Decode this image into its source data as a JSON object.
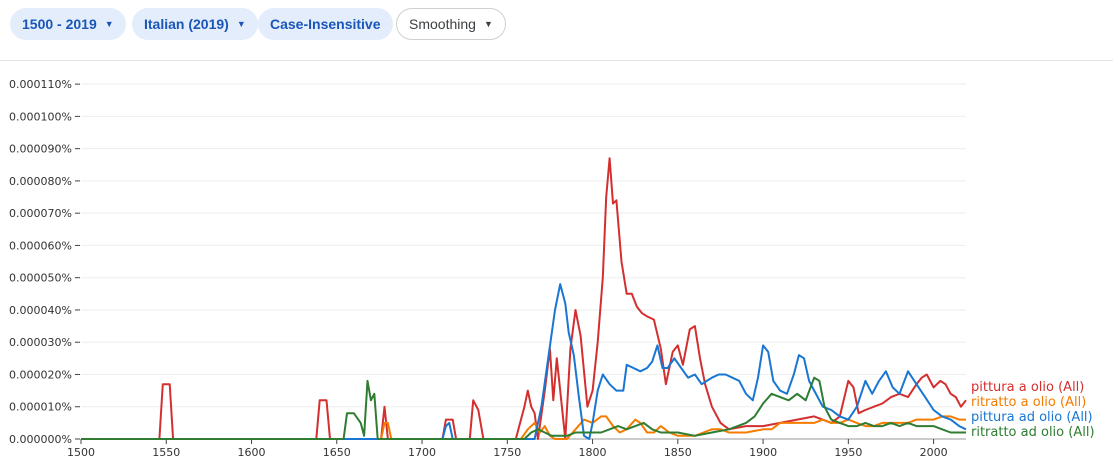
{
  "toolbar": {
    "year_range": "1500 - 2019",
    "corpus": "Italian (2019)",
    "case": "Case-Insensitive",
    "smoothing": "Smoothing"
  },
  "chart_data": {
    "type": "line",
    "x_range": [
      1500,
      2019
    ],
    "ylim": [
      0,
      1.15e-06
    ],
    "x_ticks": [
      1500,
      1550,
      1600,
      1650,
      1700,
      1750,
      1800,
      1850,
      1900,
      1950,
      2000
    ],
    "x_tick_labels": [
      "1500",
      "1550",
      "1600",
      "1650",
      "1700",
      "1750",
      "1800",
      "1850",
      "1900",
      "1950",
      "2000"
    ],
    "y_ticks": [
      0,
      1e-07,
      2e-07,
      3e-07,
      4e-07,
      5e-07,
      6e-07,
      7e-07,
      8e-07,
      9e-07,
      1e-06,
      1.1e-06
    ],
    "y_tick_labels": [
      "0.000000%",
      "0.000010%",
      "0.000020%",
      "0.000030%",
      "0.000040%",
      "0.000050%",
      "0.000060%",
      "0.000070%",
      "0.000080%",
      "0.000090%",
      "0.000100%",
      "0.000110%"
    ],
    "grid": true,
    "legend_placement": "right end of lines",
    "series": [
      {
        "name": "pittura a olio (All)",
        "color": "#d32f2f",
        "points": [
          [
            1500,
            0
          ],
          [
            1546,
            0
          ],
          [
            1548,
            1.7e-07
          ],
          [
            1552,
            1.7e-07
          ],
          [
            1554,
            0
          ],
          [
            1638,
            0
          ],
          [
            1640,
            1.2e-07
          ],
          [
            1644,
            1.2e-07
          ],
          [
            1646,
            0
          ],
          [
            1676,
            0
          ],
          [
            1678,
            1e-07
          ],
          [
            1680,
            0
          ],
          [
            1712,
            0
          ],
          [
            1714,
            6e-08
          ],
          [
            1718,
            6e-08
          ],
          [
            1720,
            0
          ],
          [
            1728,
            0
          ],
          [
            1730,
            1.2e-07
          ],
          [
            1733,
            9e-08
          ],
          [
            1736,
            0
          ],
          [
            1755,
            0
          ],
          [
            1760,
            1e-07
          ],
          [
            1762,
            1.5e-07
          ],
          [
            1764,
            1e-07
          ],
          [
            1766,
            8e-08
          ],
          [
            1768,
            0
          ],
          [
            1772,
            1.5e-07
          ],
          [
            1775,
            2.8e-07
          ],
          [
            1777,
            1.2e-07
          ],
          [
            1779,
            2.5e-07
          ],
          [
            1781,
            1.5e-07
          ],
          [
            1784,
            0
          ],
          [
            1787,
            2.8e-07
          ],
          [
            1790,
            4e-07
          ],
          [
            1793,
            3.2e-07
          ],
          [
            1797,
            1e-07
          ],
          [
            1800,
            1.5e-07
          ],
          [
            1803,
            3e-07
          ],
          [
            1806,
            5e-07
          ],
          [
            1808,
            7.5e-07
          ],
          [
            1810,
            8.7e-07
          ],
          [
            1812,
            7.3e-07
          ],
          [
            1814,
            7.4e-07
          ],
          [
            1817,
            5.5e-07
          ],
          [
            1820,
            4.5e-07
          ],
          [
            1823,
            4.5e-07
          ],
          [
            1826,
            4.1e-07
          ],
          [
            1829,
            3.9e-07
          ],
          [
            1832,
            3.8e-07
          ],
          [
            1836,
            3.7e-07
          ],
          [
            1840,
            2.8e-07
          ],
          [
            1843,
            1.7e-07
          ],
          [
            1847,
            2.7e-07
          ],
          [
            1850,
            2.9e-07
          ],
          [
            1853,
            2.3e-07
          ],
          [
            1857,
            3.4e-07
          ],
          [
            1860,
            3.5e-07
          ],
          [
            1863,
            2.5e-07
          ],
          [
            1866,
            1.7e-07
          ],
          [
            1870,
            1e-07
          ],
          [
            1875,
            5e-08
          ],
          [
            1880,
            3e-08
          ],
          [
            1890,
            4e-08
          ],
          [
            1900,
            4e-08
          ],
          [
            1910,
            5e-08
          ],
          [
            1920,
            6e-08
          ],
          [
            1930,
            7e-08
          ],
          [
            1940,
            5e-08
          ],
          [
            1945,
            7e-08
          ],
          [
            1950,
            1.8e-07
          ],
          [
            1953,
            1.6e-07
          ],
          [
            1956,
            8e-08
          ],
          [
            1960,
            9e-08
          ],
          [
            1965,
            1e-07
          ],
          [
            1970,
            1.1e-07
          ],
          [
            1975,
            1.3e-07
          ],
          [
            1980,
            1.4e-07
          ],
          [
            1985,
            1.3e-07
          ],
          [
            1990,
            1.7e-07
          ],
          [
            1993,
            1.9e-07
          ],
          [
            1996,
            2e-07
          ],
          [
            2000,
            1.6e-07
          ],
          [
            2004,
            1.8e-07
          ],
          [
            2007,
            1.7e-07
          ],
          [
            2010,
            1.4e-07
          ],
          [
            2013,
            1.3e-07
          ],
          [
            2016,
            1e-07
          ],
          [
            2019,
            1.2e-07
          ]
        ]
      },
      {
        "name": "ritratto a olio (All)",
        "color": "#f57c00",
        "points": [
          [
            1500,
            0
          ],
          [
            1676,
            0
          ],
          [
            1678,
            5e-08
          ],
          [
            1680,
            5e-08
          ],
          [
            1682,
            0
          ],
          [
            1758,
            0
          ],
          [
            1762,
            3e-08
          ],
          [
            1766,
            5e-08
          ],
          [
            1769,
            2e-08
          ],
          [
            1772,
            4e-08
          ],
          [
            1775,
            1e-08
          ],
          [
            1778,
            0
          ],
          [
            1785,
            0
          ],
          [
            1790,
            3e-08
          ],
          [
            1795,
            6e-08
          ],
          [
            1800,
            5e-08
          ],
          [
            1805,
            7e-08
          ],
          [
            1808,
            7e-08
          ],
          [
            1812,
            4e-08
          ],
          [
            1816,
            2e-08
          ],
          [
            1820,
            3e-08
          ],
          [
            1825,
            6e-08
          ],
          [
            1828,
            5e-08
          ],
          [
            1832,
            2e-08
          ],
          [
            1836,
            2e-08
          ],
          [
            1840,
            4e-08
          ],
          [
            1845,
            2e-08
          ],
          [
            1850,
            1e-08
          ],
          [
            1855,
            1e-08
          ],
          [
            1860,
            1e-08
          ],
          [
            1865,
            2e-08
          ],
          [
            1870,
            3e-08
          ],
          [
            1875,
            3e-08
          ],
          [
            1880,
            2e-08
          ],
          [
            1890,
            2e-08
          ],
          [
            1900,
            3e-08
          ],
          [
            1905,
            3e-08
          ],
          [
            1910,
            5e-08
          ],
          [
            1915,
            5e-08
          ],
          [
            1920,
            5e-08
          ],
          [
            1925,
            5e-08
          ],
          [
            1930,
            5e-08
          ],
          [
            1935,
            6e-08
          ],
          [
            1940,
            5e-08
          ],
          [
            1945,
            5e-08
          ],
          [
            1950,
            6e-08
          ],
          [
            1955,
            5e-08
          ],
          [
            1960,
            4e-08
          ],
          [
            1965,
            4e-08
          ],
          [
            1970,
            5e-08
          ],
          [
            1975,
            5e-08
          ],
          [
            1980,
            5e-08
          ],
          [
            1985,
            5e-08
          ],
          [
            1990,
            6e-08
          ],
          [
            1995,
            6e-08
          ],
          [
            2000,
            6e-08
          ],
          [
            2005,
            7e-08
          ],
          [
            2010,
            7e-08
          ],
          [
            2015,
            6e-08
          ],
          [
            2019,
            6e-08
          ]
        ]
      },
      {
        "name": "pittura ad olio (All)",
        "color": "#1976d2",
        "points": [
          [
            1500,
            0
          ],
          [
            1712,
            0
          ],
          [
            1714,
            4e-08
          ],
          [
            1716,
            5e-08
          ],
          [
            1718,
            0
          ],
          [
            1766,
            0
          ],
          [
            1770,
            1e-07
          ],
          [
            1774,
            2.5e-07
          ],
          [
            1778,
            4e-07
          ],
          [
            1781,
            4.8e-07
          ],
          [
            1784,
            4.2e-07
          ],
          [
            1786,
            3.3e-07
          ],
          [
            1789,
            2.6e-07
          ],
          [
            1792,
            1.3e-07
          ],
          [
            1795,
            1e-08
          ],
          [
            1798,
            0
          ],
          [
            1800,
            5e-08
          ],
          [
            1803,
            1.5e-07
          ],
          [
            1806,
            2e-07
          ],
          [
            1810,
            1.7e-07
          ],
          [
            1814,
            1.5e-07
          ],
          [
            1818,
            1.5e-07
          ],
          [
            1820,
            2.3e-07
          ],
          [
            1824,
            2.2e-07
          ],
          [
            1828,
            2.1e-07
          ],
          [
            1832,
            2.2e-07
          ],
          [
            1835,
            2.4e-07
          ],
          [
            1838,
            2.9e-07
          ],
          [
            1841,
            2.2e-07
          ],
          [
            1844,
            2.2e-07
          ],
          [
            1848,
            2.5e-07
          ],
          [
            1852,
            2.2e-07
          ],
          [
            1856,
            1.9e-07
          ],
          [
            1860,
            2e-07
          ],
          [
            1864,
            1.7e-07
          ],
          [
            1867,
            1.8e-07
          ],
          [
            1870,
            1.9e-07
          ],
          [
            1874,
            2e-07
          ],
          [
            1878,
            2e-07
          ],
          [
            1882,
            1.9e-07
          ],
          [
            1886,
            1.8e-07
          ],
          [
            1890,
            1.4e-07
          ],
          [
            1894,
            1.2e-07
          ],
          [
            1897,
            1.9e-07
          ],
          [
            1900,
            2.9e-07
          ],
          [
            1903,
            2.7e-07
          ],
          [
            1906,
            1.8e-07
          ],
          [
            1910,
            1.5e-07
          ],
          [
            1914,
            1.4e-07
          ],
          [
            1918,
            2e-07
          ],
          [
            1921,
            2.6e-07
          ],
          [
            1924,
            2.5e-07
          ],
          [
            1927,
            1.8e-07
          ],
          [
            1930,
            1.5e-07
          ],
          [
            1935,
            1e-07
          ],
          [
            1940,
            9e-08
          ],
          [
            1945,
            7e-08
          ],
          [
            1950,
            6e-08
          ],
          [
            1955,
            1e-07
          ],
          [
            1960,
            1.8e-07
          ],
          [
            1964,
            1.4e-07
          ],
          [
            1968,
            1.8e-07
          ],
          [
            1972,
            2.1e-07
          ],
          [
            1976,
            1.6e-07
          ],
          [
            1980,
            1.4e-07
          ],
          [
            1985,
            2.1e-07
          ],
          [
            1990,
            1.7e-07
          ],
          [
            1995,
            1.3e-07
          ],
          [
            2000,
            9e-08
          ],
          [
            2005,
            7e-08
          ],
          [
            2010,
            6e-08
          ],
          [
            2015,
            4e-08
          ],
          [
            2019,
            3e-08
          ]
        ]
      },
      {
        "name": "ritratto ad olio (All)",
        "color": "#2e7d32",
        "points": [
          [
            1500,
            0
          ],
          [
            1654,
            0
          ],
          [
            1656,
            8e-08
          ],
          [
            1660,
            8e-08
          ],
          [
            1664,
            5e-08
          ],
          [
            1666,
            1e-08
          ],
          [
            1668,
            1.8e-07
          ],
          [
            1670,
            1.2e-07
          ],
          [
            1672,
            1.4e-07
          ],
          [
            1674,
            0
          ],
          [
            1760,
            0
          ],
          [
            1764,
            2e-08
          ],
          [
            1768,
            3e-08
          ],
          [
            1772,
            2e-08
          ],
          [
            1776,
            1e-08
          ],
          [
            1780,
            1e-08
          ],
          [
            1785,
            1e-08
          ],
          [
            1790,
            2e-08
          ],
          [
            1795,
            2e-08
          ],
          [
            1800,
            2e-08
          ],
          [
            1805,
            2e-08
          ],
          [
            1810,
            3e-08
          ],
          [
            1815,
            4e-08
          ],
          [
            1820,
            3e-08
          ],
          [
            1825,
            4e-08
          ],
          [
            1830,
            5e-08
          ],
          [
            1835,
            3e-08
          ],
          [
            1840,
            2e-08
          ],
          [
            1845,
            2e-08
          ],
          [
            1850,
            2e-08
          ],
          [
            1860,
            1e-08
          ],
          [
            1870,
            2e-08
          ],
          [
            1880,
            3e-08
          ],
          [
            1890,
            5e-08
          ],
          [
            1895,
            7e-08
          ],
          [
            1900,
            1.1e-07
          ],
          [
            1905,
            1.4e-07
          ],
          [
            1910,
            1.3e-07
          ],
          [
            1915,
            1.2e-07
          ],
          [
            1920,
            1.4e-07
          ],
          [
            1925,
            1.2e-07
          ],
          [
            1930,
            1.9e-07
          ],
          [
            1933,
            1.8e-07
          ],
          [
            1936,
            1e-07
          ],
          [
            1940,
            6e-08
          ],
          [
            1945,
            5e-08
          ],
          [
            1950,
            4e-08
          ],
          [
            1955,
            4e-08
          ],
          [
            1960,
            5e-08
          ],
          [
            1965,
            4e-08
          ],
          [
            1970,
            4e-08
          ],
          [
            1975,
            5e-08
          ],
          [
            1980,
            4e-08
          ],
          [
            1985,
            5e-08
          ],
          [
            1990,
            4e-08
          ],
          [
            1995,
            4e-08
          ],
          [
            2000,
            4e-08
          ],
          [
            2005,
            3e-08
          ],
          [
            2010,
            2e-08
          ],
          [
            2015,
            2e-08
          ],
          [
            2019,
            2e-08
          ]
        ]
      }
    ]
  }
}
